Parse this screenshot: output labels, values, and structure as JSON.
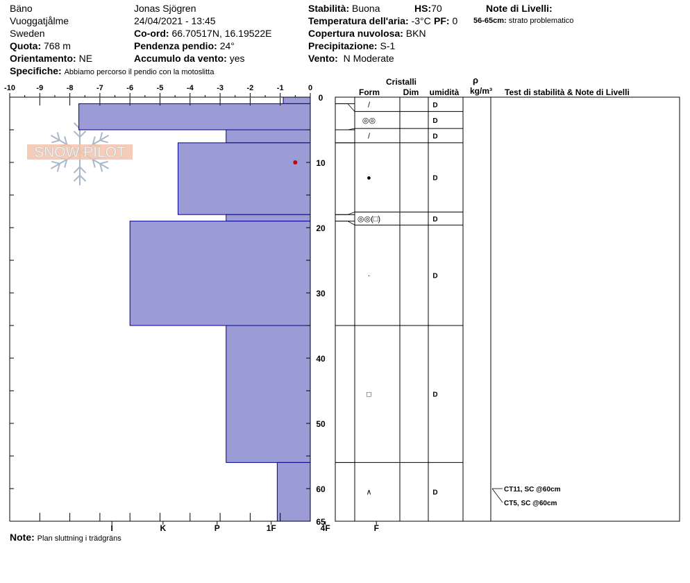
{
  "header": {
    "location": "Bäno",
    "region": "Vuoggatjålme",
    "country": "Sweden",
    "elevation_label": "Quota:",
    "elevation_value": "768 m",
    "aspect_label": "Orientamento:",
    "aspect_value": "NE",
    "specifics_label": "Specifiche:",
    "specifics_value": "Abbiamo percorso il pendio con la motoslitta",
    "observer": "Jonas Sjögren",
    "datetime": "24/04/2021 - 13:45",
    "coords_label": "Co-ord:",
    "coords_value": "66.70517N, 16.19522E",
    "slope_label": "Pendenza pendio:",
    "slope_value": "24°",
    "wind_loading_label": "Accumulo da vento:",
    "wind_loading_value": "yes",
    "stability_label": "Stabilità:",
    "stability_value": "Buona",
    "air_temp_label": "Temperatura dell'aria:",
    "air_temp_value": "-3°C",
    "cloud_label": "Copertura nuvolosa:",
    "cloud_value": "BKN",
    "precip_label": "Precipitazione:",
    "precip_value": "S-1",
    "wind_label": "Vento:",
    "wind_value": "N Moderate",
    "hs_label": "HS:",
    "hs_value": "70",
    "pf_label": "PF:",
    "pf_value": "0",
    "layer_notes_title": "Note di Livelli:",
    "layer_note_range": "56-65cm:",
    "layer_note_text": "strato problematico"
  },
  "footer": {
    "note_label": "Note:",
    "note_value": "Plan sluttning i trädgräns"
  },
  "table_headers": {
    "crystals": "Cristalli",
    "form": "Form",
    "size": "Dim",
    "moisture": "umidità",
    "density_symbol": "ρ",
    "density_unit": "kg/m³",
    "tests": "Test di stabilità & Note di Livelli"
  },
  "logo_text": "SNOW PILOT",
  "colors": {
    "bar_fill": "#9b9bd6",
    "bar_stroke": "#00008b",
    "temp_point": "#cc0000",
    "grid": "#000000"
  },
  "chart_data": {
    "type": "bar",
    "orientation": "horizontal",
    "top_axis_ticks": [
      "-10",
      "-9",
      "-8",
      "-7",
      "-6",
      "-5",
      "-4",
      "-3",
      "-2",
      "-1",
      "0"
    ],
    "top_axis_range": [
      -10,
      0
    ],
    "depth_ticks": [
      "0",
      "10",
      "20",
      "30",
      "40",
      "50",
      "60",
      "65"
    ],
    "depth_range": [
      0,
      65
    ],
    "hardness_labels": [
      "I",
      "K",
      "P",
      "1F",
      "4F",
      "F"
    ],
    "hardness_values": [
      6.6,
      4.9,
      3.1,
      1.3,
      -0.5,
      -2.2
    ],
    "layers": [
      {
        "top": 0,
        "bottom": 1,
        "hardness": 0.9
      },
      {
        "top": 1,
        "bottom": 5,
        "hardness": 7.7
      },
      {
        "top": 5,
        "bottom": 7,
        "hardness": 2.8
      },
      {
        "top": 7,
        "bottom": 18,
        "hardness": 4.4
      },
      {
        "top": 18,
        "bottom": 19,
        "hardness": 2.8
      },
      {
        "top": 19,
        "bottom": 35,
        "hardness": 6.0
      },
      {
        "top": 35,
        "bottom": 56,
        "hardness": 2.8
      },
      {
        "top": 56,
        "bottom": 65,
        "hardness": 1.1
      }
    ],
    "temperature_points": [
      {
        "temp": -0.5,
        "depth": 10
      }
    ],
    "table_rows": [
      {
        "top": 0,
        "bottom": 2.2,
        "form": "/",
        "moisture": "D"
      },
      {
        "top": 2.2,
        "bottom": 4.8,
        "form": "◎◎",
        "moisture": "D"
      },
      {
        "top": 4.8,
        "bottom": 7,
        "form": "/",
        "moisture": "D"
      },
      {
        "top": 7,
        "bottom": 17.6,
        "form": "●",
        "moisture": "D"
      },
      {
        "top": 17.6,
        "bottom": 19.6,
        "form": "◎◎(□)",
        "moisture": "D"
      },
      {
        "top": 19.6,
        "bottom": 35,
        "form": "·",
        "moisture": "D"
      },
      {
        "top": 35,
        "bottom": 56,
        "form": "□",
        "moisture": "D"
      },
      {
        "top": 56,
        "bottom": 65,
        "form": "∧",
        "moisture": "D"
      }
    ],
    "tests": [
      {
        "label": "CT11, SC @60cm",
        "depth": 60
      },
      {
        "label": "CT5, SC @60cm",
        "depth": 60
      }
    ]
  }
}
